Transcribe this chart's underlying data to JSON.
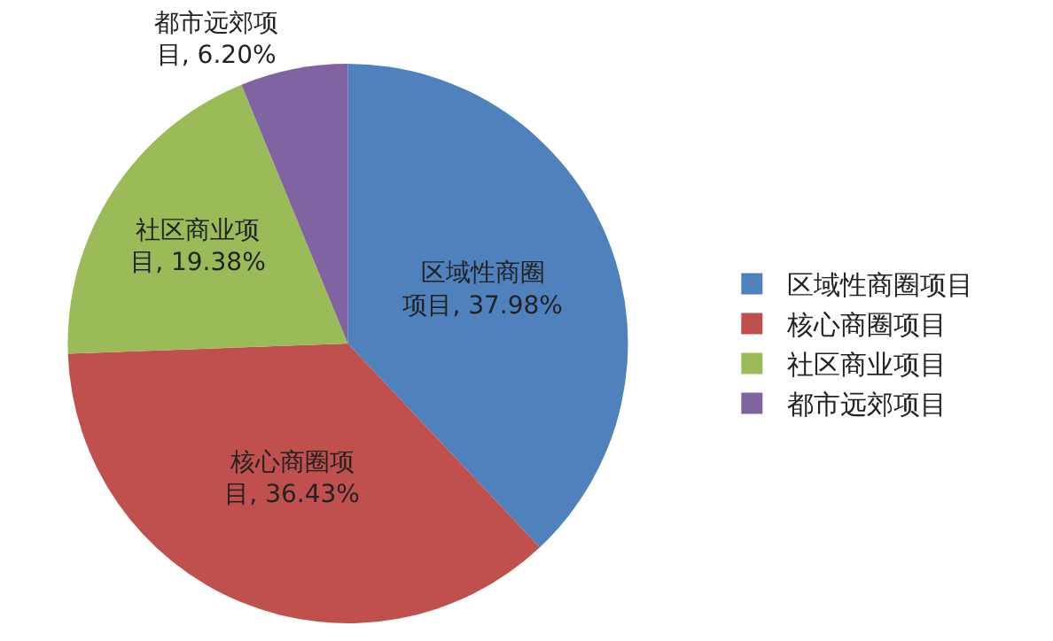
{
  "chart_data": {
    "type": "pie",
    "categories": [
      "区域性商圈项目",
      "核心商圈项目",
      "社区商业项目",
      "都市远郊项目"
    ],
    "values": [
      37.98,
      36.43,
      19.38,
      6.2
    ],
    "value_labels": [
      "区域性商圈项目, 37.98%",
      "核心商圈项目, 36.43%",
      "社区商业项目, 19.38%",
      "都市远郊项目, 6.20%"
    ],
    "colors": [
      "#4f81bd",
      "#c0504d",
      "#9bbb59",
      "#8064a2"
    ],
    "legend": "right"
  }
}
